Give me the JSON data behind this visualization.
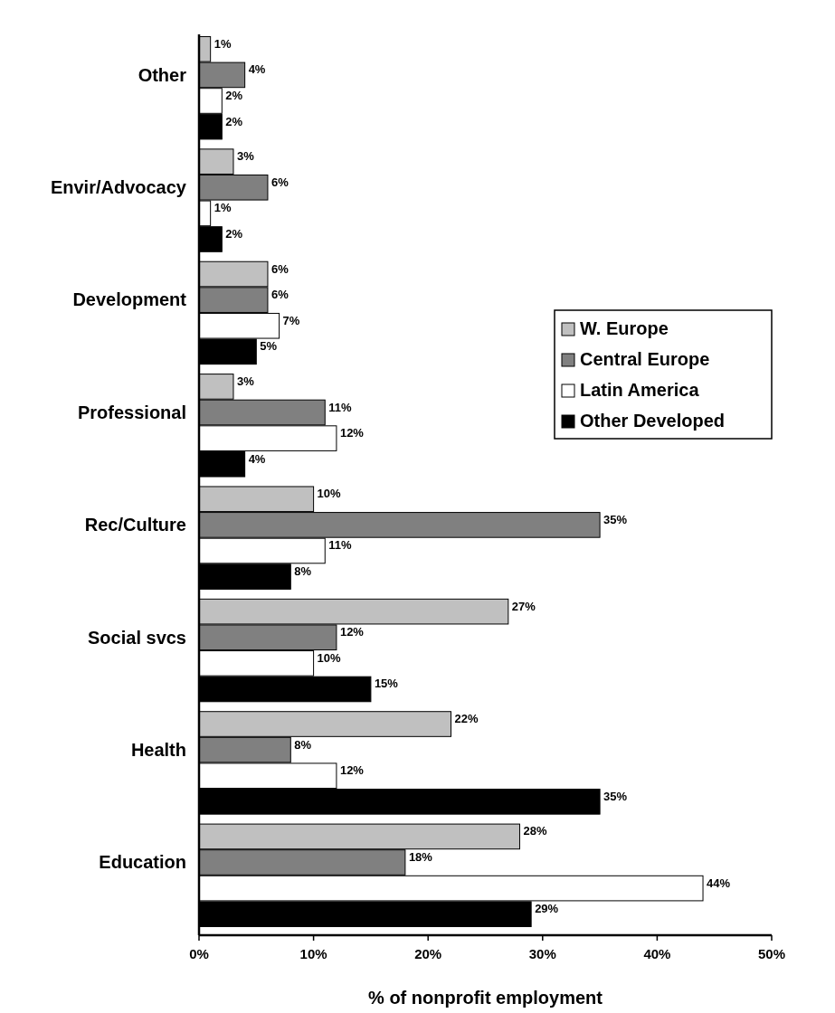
{
  "chart_data": {
    "type": "bar",
    "orientation": "horizontal",
    "xlabel": "% of nonprofit employment",
    "categories": [
      "Other",
      "Envir/Advocacy",
      "Development",
      "Professional",
      "Rec/Culture",
      "Social svcs",
      "Health",
      "Education"
    ],
    "series": [
      {
        "name": "W. Europe",
        "color": "#c0c0c0",
        "values": [
          1,
          3,
          6,
          3,
          10,
          27,
          22,
          28
        ],
        "value_labels": [
          "1%",
          "3%",
          "6%",
          "3%",
          "10%",
          "27%",
          "22%",
          "28%"
        ]
      },
      {
        "name": "Central Europe",
        "color": "#808080",
        "values": [
          4,
          6,
          6,
          11,
          35,
          12,
          8,
          18
        ],
        "value_labels": [
          "4%",
          "6%",
          "6%",
          "11%",
          "35%",
          "12%",
          "8%",
          "18%"
        ]
      },
      {
        "name": "Latin America",
        "color": "#ffffff",
        "values": [
          2,
          1,
          7,
          12,
          11,
          10,
          12,
          44
        ],
        "value_labels": [
          "2%",
          "1%",
          "7%",
          "12%",
          "11%",
          "10%",
          "12%",
          "44%"
        ]
      },
      {
        "name": "Other Developed",
        "color": "#000000",
        "values": [
          2,
          2,
          5,
          4,
          8,
          15,
          35,
          29
        ],
        "value_labels": [
          "2%",
          "2%",
          "5%",
          "4%",
          "8%",
          "15%",
          "35%",
          "29%"
        ]
      }
    ],
    "xlim": [
      0,
      50
    ],
    "xticks": [
      {
        "value": 0,
        "label": "0%"
      },
      {
        "value": 10,
        "label": "10%"
      },
      {
        "value": 20,
        "label": "20%"
      },
      {
        "value": 30,
        "label": "30%"
      },
      {
        "value": 40,
        "label": "40%"
      },
      {
        "value": 50,
        "label": "50%"
      }
    ],
    "legend": "right",
    "grid": false
  }
}
